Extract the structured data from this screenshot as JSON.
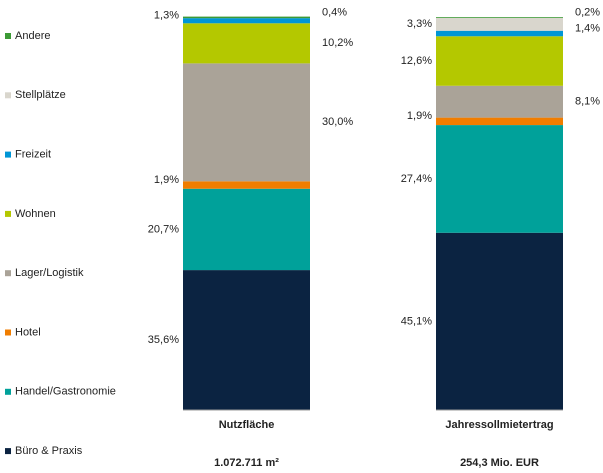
{
  "chart_data": {
    "type": "stacked_bar",
    "categories": [
      "Nutzfläche",
      "Jahressollmietertrag"
    ],
    "subtitles": [
      "1.072.711 m²",
      "254,3 Mio. EUR"
    ],
    "ylim": [
      0,
      100
    ],
    "series": [
      {
        "name": "Büro & Praxis",
        "color": "#0b2341",
        "values": [
          35.6,
          45.1
        ],
        "value_labels": [
          "35,6%",
          "45,1%"
        ]
      },
      {
        "name": "Handel/Gastronomie",
        "color": "#00a19a",
        "values": [
          20.7,
          27.4
        ],
        "value_labels": [
          "20,7%",
          "27,4%"
        ]
      },
      {
        "name": "Hotel",
        "color": "#f07d00",
        "values": [
          1.9,
          1.9
        ],
        "value_labels": [
          "1,9%",
          "1,9%"
        ]
      },
      {
        "name": "Lager/Logistik",
        "color": "#aaa398",
        "values": [
          30.0,
          8.1
        ],
        "value_labels": [
          "30,0%",
          "8,1%"
        ]
      },
      {
        "name": "Wohnen",
        "color": "#b4c800",
        "values": [
          10.2,
          12.6
        ],
        "value_labels": [
          "10,2%",
          "12,6%"
        ]
      },
      {
        "name": "Freizeit",
        "color": "#0096d6",
        "values": [
          1.3,
          1.4
        ],
        "value_labels": [
          "1,3%",
          "1,4%"
        ]
      },
      {
        "name": "Stellplätze",
        "color": "#d9d6cd",
        "values": [
          0,
          3.3
        ],
        "value_labels": [
          null,
          "3,3%"
        ]
      },
      {
        "name": "Andere",
        "color": "#3c9a35",
        "values": [
          0.4,
          0.2
        ],
        "value_labels": [
          "0,4%",
          "0,2%"
        ]
      }
    ]
  }
}
